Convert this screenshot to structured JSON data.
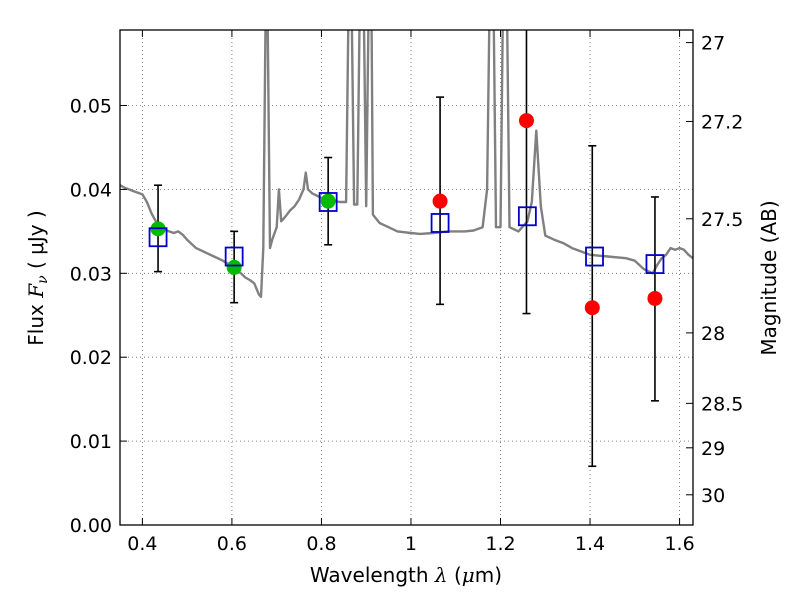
{
  "chart_data": {
    "type": "scatter",
    "xlabel": {
      "prefix": "Wavelength ",
      "symbol": "λ",
      "unit_open": " (",
      "mu": "μ",
      "unit_close": "m)"
    },
    "ylabel": {
      "prefix": "Flux ",
      "symbol": "F",
      "sub": "ν",
      "unit": " ( μJy )"
    },
    "y2label": "Magnitude (AB)",
    "xlim": [
      0.35,
      1.63
    ],
    "ylim": [
      0.0,
      0.059
    ],
    "x_ticks": [
      0.4,
      0.6,
      0.8,
      1.0,
      1.2,
      1.4,
      1.6
    ],
    "x_tick_labels": [
      "0.4",
      "0.6",
      "0.8",
      "1",
      "1.2",
      "1.4",
      "1.6"
    ],
    "y_ticks": [
      0.0,
      0.01,
      0.02,
      0.03,
      0.04,
      0.05
    ],
    "y_tick_labels": [
      "0.00",
      "0.01",
      "0.02",
      "0.03",
      "0.04",
      "0.05"
    ],
    "y2_ticks": [
      {
        "label": "27",
        "flux": 0.0575
      },
      {
        "label": "27.2",
        "flux": 0.0481
      },
      {
        "label": "27.5",
        "flux": 0.0365
      },
      {
        "label": "28",
        "flux": 0.0229
      },
      {
        "label": "28.5",
        "flux": 0.0145
      },
      {
        "label": "29",
        "flux": 0.0092
      },
      {
        "label": "30",
        "flux": 0.0036
      }
    ],
    "grid": true,
    "colors": {
      "sed": "#808080",
      "green": "#00bb00",
      "red": "#ff0000",
      "box": "#0000cc",
      "errbar": "#000000"
    },
    "sed_curve": [
      [
        0.35,
        0.0405
      ],
      [
        0.36,
        0.0402
      ],
      [
        0.37,
        0.04
      ],
      [
        0.38,
        0.0398
      ],
      [
        0.39,
        0.0396
      ],
      [
        0.4,
        0.0394
      ],
      [
        0.41,
        0.0385
      ],
      [
        0.42,
        0.0372
      ],
      [
        0.43,
        0.0362
      ],
      [
        0.44,
        0.0356
      ],
      [
        0.45,
        0.0352
      ],
      [
        0.46,
        0.035
      ],
      [
        0.47,
        0.0348
      ],
      [
        0.48,
        0.035
      ],
      [
        0.49,
        0.0346
      ],
      [
        0.5,
        0.034
      ],
      [
        0.52,
        0.033
      ],
      [
        0.54,
        0.0325
      ],
      [
        0.56,
        0.032
      ],
      [
        0.58,
        0.0315
      ],
      [
        0.6,
        0.0308
      ],
      [
        0.62,
        0.03
      ],
      [
        0.63,
        0.0295
      ],
      [
        0.64,
        0.0292
      ],
      [
        0.65,
        0.0288
      ],
      [
        0.66,
        0.0275
      ],
      [
        0.665,
        0.0272
      ],
      [
        0.67,
        0.033
      ],
      [
        0.675,
        0.0595
      ],
      [
        0.68,
        0.0595
      ],
      [
        0.685,
        0.033
      ],
      [
        0.69,
        0.034
      ],
      [
        0.7,
        0.0355
      ],
      [
        0.705,
        0.04
      ],
      [
        0.71,
        0.0362
      ],
      [
        0.72,
        0.0368
      ],
      [
        0.73,
        0.0375
      ],
      [
        0.74,
        0.038
      ],
      [
        0.75,
        0.0388
      ],
      [
        0.76,
        0.04
      ],
      [
        0.765,
        0.042
      ],
      [
        0.77,
        0.04
      ],
      [
        0.78,
        0.0395
      ],
      [
        0.8,
        0.039
      ],
      [
        0.82,
        0.0388
      ],
      [
        0.84,
        0.0385
      ],
      [
        0.855,
        0.0385
      ],
      [
        0.86,
        0.0595
      ],
      [
        0.868,
        0.0595
      ],
      [
        0.873,
        0.0382
      ],
      [
        0.88,
        0.0382
      ],
      [
        0.885,
        0.0595
      ],
      [
        0.895,
        0.0595
      ],
      [
        0.9,
        0.038
      ],
      [
        0.905,
        0.0595
      ],
      [
        0.912,
        0.0595
      ],
      [
        0.915,
        0.037
      ],
      [
        0.93,
        0.036
      ],
      [
        0.95,
        0.0355
      ],
      [
        0.97,
        0.035
      ],
      [
        1.0,
        0.0348
      ],
      [
        1.02,
        0.0347
      ],
      [
        1.05,
        0.0348
      ],
      [
        1.08,
        0.035
      ],
      [
        1.1,
        0.035
      ],
      [
        1.12,
        0.035
      ],
      [
        1.14,
        0.0351
      ],
      [
        1.16,
        0.0355
      ],
      [
        1.17,
        0.04
      ],
      [
        1.175,
        0.0595
      ],
      [
        1.185,
        0.0595
      ],
      [
        1.19,
        0.0355
      ],
      [
        1.2,
        0.0355
      ],
      [
        1.205,
        0.0595
      ],
      [
        1.215,
        0.0595
      ],
      [
        1.22,
        0.0355
      ],
      [
        1.24,
        0.035
      ],
      [
        1.26,
        0.0362
      ],
      [
        1.27,
        0.0385
      ],
      [
        1.28,
        0.047
      ],
      [
        1.29,
        0.038
      ],
      [
        1.3,
        0.0345
      ],
      [
        1.32,
        0.034
      ],
      [
        1.34,
        0.0336
      ],
      [
        1.36,
        0.033
      ],
      [
        1.4,
        0.0322
      ],
      [
        1.44,
        0.032
      ],
      [
        1.48,
        0.0318
      ],
      [
        1.5,
        0.0315
      ],
      [
        1.52,
        0.0305
      ],
      [
        1.54,
        0.03
      ],
      [
        1.55,
        0.031
      ],
      [
        1.56,
        0.0318
      ],
      [
        1.57,
        0.0322
      ],
      [
        1.58,
        0.033
      ],
      [
        1.59,
        0.0328
      ],
      [
        1.6,
        0.033
      ],
      [
        1.61,
        0.0328
      ],
      [
        1.62,
        0.0322
      ],
      [
        1.63,
        0.0318
      ]
    ],
    "observed_points": [
      {
        "x": 0.435,
        "y": 0.0353,
        "color": "green",
        "err_low": 0.0302,
        "err_high": 0.0405
      },
      {
        "x": 0.605,
        "y": 0.0307,
        "color": "green",
        "err_low": 0.0265,
        "err_high": 0.035
      },
      {
        "x": 0.815,
        "y": 0.0386,
        "color": "green",
        "err_low": 0.0334,
        "err_high": 0.0438
      },
      {
        "x": 1.065,
        "y": 0.0386,
        "color": "red",
        "err_low": 0.0263,
        "err_high": 0.051
      },
      {
        "x": 1.258,
        "y": 0.0482,
        "color": "red",
        "err_low": 0.0252,
        "err_high": 0.0595
      },
      {
        "x": 1.405,
        "y": 0.0259,
        "color": "red",
        "err_low": 0.007,
        "err_high": 0.0452
      },
      {
        "x": 1.545,
        "y": 0.027,
        "color": "red",
        "err_low": 0.0148,
        "err_high": 0.0391
      }
    ],
    "model_points": [
      {
        "x": 0.435,
        "y": 0.0343
      },
      {
        "x": 0.605,
        "y": 0.032
      },
      {
        "x": 0.815,
        "y": 0.0385
      },
      {
        "x": 1.065,
        "y": 0.036
      },
      {
        "x": 1.26,
        "y": 0.0368
      },
      {
        "x": 1.41,
        "y": 0.032
      },
      {
        "x": 1.545,
        "y": 0.0311
      }
    ]
  }
}
